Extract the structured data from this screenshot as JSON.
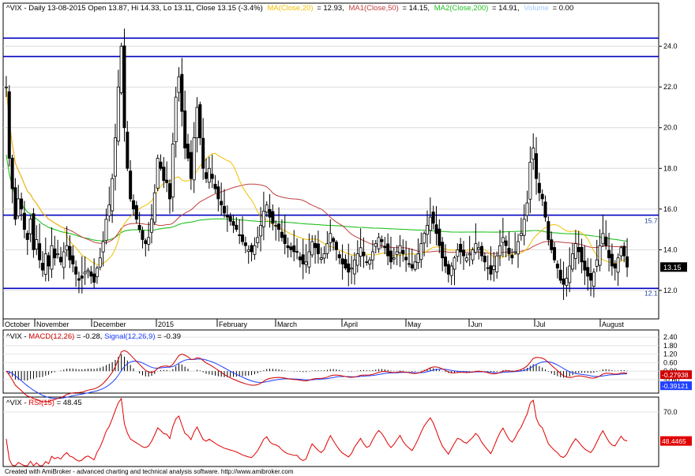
{
  "title": {
    "main": "^VIX - Daily 13-08-2015 Open 13.87, Hi 14.33, Lo 13.11, Close 13.15 (-3.4%)",
    "ma": "MA(Close,20)",
    "ma_val": "= 12.93,",
    "ma1": "MA1(Close,50)",
    "ma1_val": "= 14.15,",
    "ma2": "MA2(Close,200)",
    "ma2_val": "= 14.91,",
    "vol": "Volume",
    "vol_val": "= 0.00"
  },
  "macd_title": {
    "p1": "^VIX - ",
    "macd": "MACD(12,26)",
    "macd_val": " = -0.28, ",
    "sig": "Signal(12,26,9)",
    "sig_val": " = -0.39"
  },
  "rsi_title": {
    "p1": "^VIX - ",
    "rsi": "RSI(15)",
    "rsi_val": " = 48.45"
  },
  "footer": "Created with AmiBroker - advanced charting and technical analysis software. http://www.amibroker.com",
  "colors": {
    "ma20": "#f0c000",
    "ma50": "#c04040",
    "ma200": "#20c020",
    "hline": "#0000c0",
    "macd": "#d00000",
    "signal": "#2040ff",
    "rsi": "#e00000",
    "volume": "#a0c8ff"
  },
  "chart_data": [
    {
      "type": "candlestick",
      "name": "price",
      "x_labels": [
        "October",
        "November",
        "December",
        "2015",
        "February",
        "March",
        "April",
        "May",
        "Jun",
        "Jul",
        "August"
      ],
      "y_ticks": [
        12.0,
        14.0,
        16.0,
        18.0,
        20.0,
        22.0,
        24.0
      ],
      "ylim": [
        10.6,
        25.5
      ],
      "hlines": [
        24.4,
        23.5,
        15.7,
        12.1
      ],
      "hline_labels": [
        "15.7",
        "12.1"
      ],
      "last_close": "13.15",
      "close_series": [
        22,
        18.5,
        17,
        15.5,
        16.5,
        16,
        15,
        14.5,
        15.5,
        14,
        14.5,
        13.5,
        13,
        13.8,
        13.2,
        14.2,
        13.6,
        13.8,
        13.4,
        13.9,
        14.2,
        13.5,
        13.3,
        12.8,
        12.5,
        12.6,
        12.9,
        13,
        12.7,
        12.4,
        13.1,
        13.6,
        14.4,
        15.5,
        16.2,
        17.5,
        19.5,
        22,
        24,
        20,
        18,
        16.5,
        16,
        15.5,
        15,
        14.5,
        14.3,
        14.6,
        15.5,
        16.8,
        18.5,
        18,
        17.4,
        17.3,
        16.5,
        19.2,
        21.5,
        22.5,
        20.8,
        19,
        18.5,
        17.5,
        19.5,
        21,
        19.5,
        18,
        17.5,
        18,
        17.5,
        17,
        16.5,
        16.2,
        15.8,
        15.6,
        15.4,
        15.2,
        15,
        14.7,
        14.4,
        14.2,
        14,
        13.9,
        14.2,
        14.6,
        15.2,
        15.9,
        16.2,
        15.6,
        15.3,
        15.2,
        15,
        14.6,
        14.3,
        14.1,
        14,
        13.9,
        13.9,
        13.5,
        13.3,
        13.4,
        13.9,
        14.4,
        14.1,
        13.8,
        13.6,
        13.8,
        14.3,
        14.8,
        14.4,
        14,
        13.6,
        13.3,
        13.1,
        12.9,
        13.1,
        13.5,
        13.8,
        14.1,
        13.7,
        13.4,
        13.5,
        13.9,
        14.3,
        14.6,
        14.4,
        14.1,
        13.7,
        13.4,
        13.6,
        13.9,
        14.2,
        13.8,
        13.5,
        13.3,
        13.1,
        13.4,
        13.8,
        14.3,
        14.8,
        15.2,
        15.6,
        15.3,
        14.8,
        14.2,
        13.6,
        13.2,
        12.8,
        13.2,
        13.6,
        14,
        13.9,
        13.7,
        13.6,
        13.8,
        14,
        14.3,
        14.1,
        13.7,
        13.4,
        13.1,
        12.8,
        13.2,
        13.7,
        14.2,
        14.6,
        14.2,
        13.8,
        13.6,
        13.9,
        14.4,
        14.8,
        15.5,
        16.3,
        18.3,
        19,
        17.5,
        16.8,
        16.5,
        15.6,
        14.5,
        14,
        13.5,
        13.1,
        12.5,
        12.3,
        12.6,
        13.2,
        13.8,
        14.3,
        13.9,
        13.4,
        13.0,
        12.7,
        12.5,
        12.9,
        13.5,
        14.2,
        14.8,
        14.2,
        13.6,
        13.2,
        13.1,
        13.6,
        14.1,
        13.7,
        13.15
      ]
    },
    {
      "type": "line",
      "name": "macd",
      "y_ticks": [
        -0.6,
        0.0,
        0.6,
        1.2,
        1.8,
        2.4
      ],
      "ylim": [
        -1.5,
        2.8
      ],
      "series": [
        {
          "name": "MACD(12,26)",
          "values": []
        },
        {
          "name": "Signal(12,26,9)",
          "values": []
        }
      ],
      "macd_label": "-0.27938",
      "signal_label": "-0.39121"
    },
    {
      "type": "line",
      "name": "rsi",
      "y_ticks": [
        70.0
      ],
      "ylim": [
        30,
        80
      ],
      "series": [
        {
          "name": "RSI(15)",
          "values": []
        }
      ],
      "last_label": "48.4465"
    }
  ]
}
